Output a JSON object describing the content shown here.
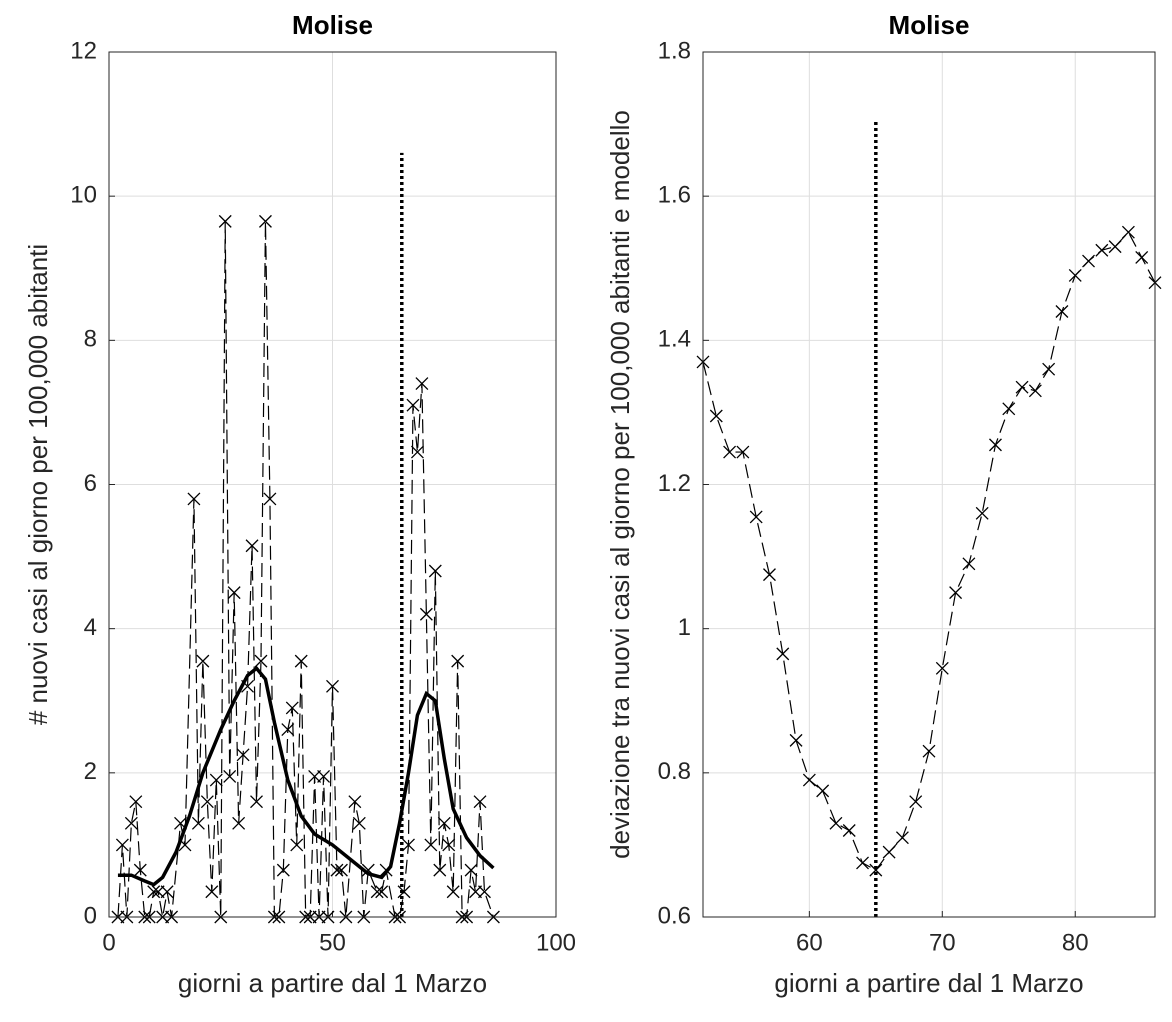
{
  "chart_data": [
    {
      "type": "line",
      "title": "Molise",
      "xlabel": "giorni a partire dal 1 Marzo",
      "ylabel": "# nuovi casi al giorno per 100,000 abitanti",
      "xlim": [
        0,
        100
      ],
      "xticks": [
        0,
        50,
        100
      ],
      "ylim": [
        0,
        12
      ],
      "yticks": [
        0,
        2,
        4,
        6,
        8,
        10,
        12
      ],
      "grid": true,
      "series": [
        {
          "color": "#000000",
          "linestyle": "dashed",
          "marker": "x",
          "x": [
            2,
            3,
            4,
            5,
            6,
            7,
            8,
            9,
            10,
            11,
            12,
            13,
            14,
            16,
            17,
            19,
            20,
            21,
            22,
            23,
            24,
            25,
            26,
            27,
            28,
            29,
            30,
            31,
            32,
            33,
            34,
            35,
            36,
            37,
            38,
            39,
            40,
            41,
            42,
            43,
            44,
            45,
            46,
            47,
            48,
            49,
            50,
            51,
            52,
            53,
            55,
            56,
            57,
            58,
            60,
            61,
            62,
            64,
            65,
            66,
            67,
            68,
            69,
            70,
            71,
            72,
            73,
            74,
            75,
            76,
            77,
            78,
            79,
            80,
            81,
            82,
            83,
            84,
            86
          ],
          "values": [
            0,
            1.0,
            0,
            1.3,
            1.6,
            0.65,
            0,
            0,
            0.35,
            0.35,
            0,
            0.35,
            0,
            1.3,
            1.0,
            5.8,
            1.3,
            3.55,
            1.6,
            0.35,
            1.9,
            0,
            9.65,
            1.95,
            4.5,
            1.3,
            2.25,
            3.2,
            5.15,
            1.6,
            3.55,
            9.65,
            5.8,
            0,
            0,
            0.65,
            2.6,
            2.9,
            1.0,
            3.55,
            0,
            0,
            1.95,
            0,
            1.95,
            0,
            3.2,
            0.65,
            0.65,
            0,
            1.6,
            1.3,
            0,
            0.65,
            0.35,
            0.35,
            0.65,
            0,
            0,
            0.35,
            1.0,
            7.1,
            6.45,
            7.4,
            4.2,
            1.0,
            4.8,
            0.65,
            1.3,
            1.0,
            0.35,
            3.55,
            0,
            0,
            0.65,
            0.35,
            1.6,
            0.35,
            0
          ]
        },
        {
          "color": "#000000",
          "linestyle": "solid",
          "x": [
            2,
            5,
            8,
            10,
            12,
            15,
            18,
            21,
            25,
            28,
            31,
            33,
            35,
            37,
            40,
            43,
            46,
            50,
            54,
            58,
            61,
            63,
            65,
            67,
            69,
            71,
            73,
            75,
            77,
            80,
            83,
            86
          ],
          "values": [
            0.58,
            0.58,
            0.5,
            0.45,
            0.55,
            0.9,
            1.4,
            2.0,
            2.6,
            3.0,
            3.35,
            3.45,
            3.3,
            2.7,
            1.9,
            1.4,
            1.15,
            1.0,
            0.8,
            0.6,
            0.55,
            0.7,
            1.3,
            2.0,
            2.8,
            3.1,
            3.0,
            2.2,
            1.5,
            1.1,
            0.85,
            0.68
          ]
        }
      ],
      "vline": {
        "x": 65.5,
        "y": [
          0,
          10.6
        ]
      }
    },
    {
      "type": "line",
      "title": "Molise",
      "xlabel": "giorni a partire dal 1 Marzo",
      "ylabel": "deviazione tra nuovi casi al giorno per 100,000 abitanti e modello",
      "xlim": [
        52,
        86
      ],
      "xticks": [
        60,
        70,
        80
      ],
      "ylim": [
        0.6,
        1.8
      ],
      "yticks": [
        0.6,
        0.8,
        1,
        1.2,
        1.4,
        1.6,
        1.8
      ],
      "grid": true,
      "series": [
        {
          "color": "#000000",
          "linestyle": "dashed",
          "marker": "x",
          "x": [
            52,
            53,
            54,
            55,
            56,
            57,
            58,
            59,
            60,
            61,
            62,
            63,
            64,
            65,
            66,
            67,
            68,
            69,
            70,
            71,
            72,
            73,
            74,
            75,
            76,
            77,
            78,
            79,
            80,
            81,
            82,
            83,
            84,
            85,
            86
          ],
          "values": [
            1.37,
            1.295,
            1.245,
            1.245,
            1.155,
            1.075,
            0.965,
            0.845,
            0.79,
            0.775,
            0.73,
            0.72,
            0.675,
            0.665,
            0.69,
            0.71,
            0.76,
            0.83,
            0.945,
            1.05,
            1.09,
            1.16,
            1.255,
            1.305,
            1.335,
            1.33,
            1.36,
            1.44,
            1.49,
            1.51,
            1.525,
            1.53,
            1.55,
            1.515,
            1.48
          ]
        }
      ],
      "vline": {
        "x": 65,
        "y": [
          0.6,
          1.705
        ]
      }
    }
  ]
}
